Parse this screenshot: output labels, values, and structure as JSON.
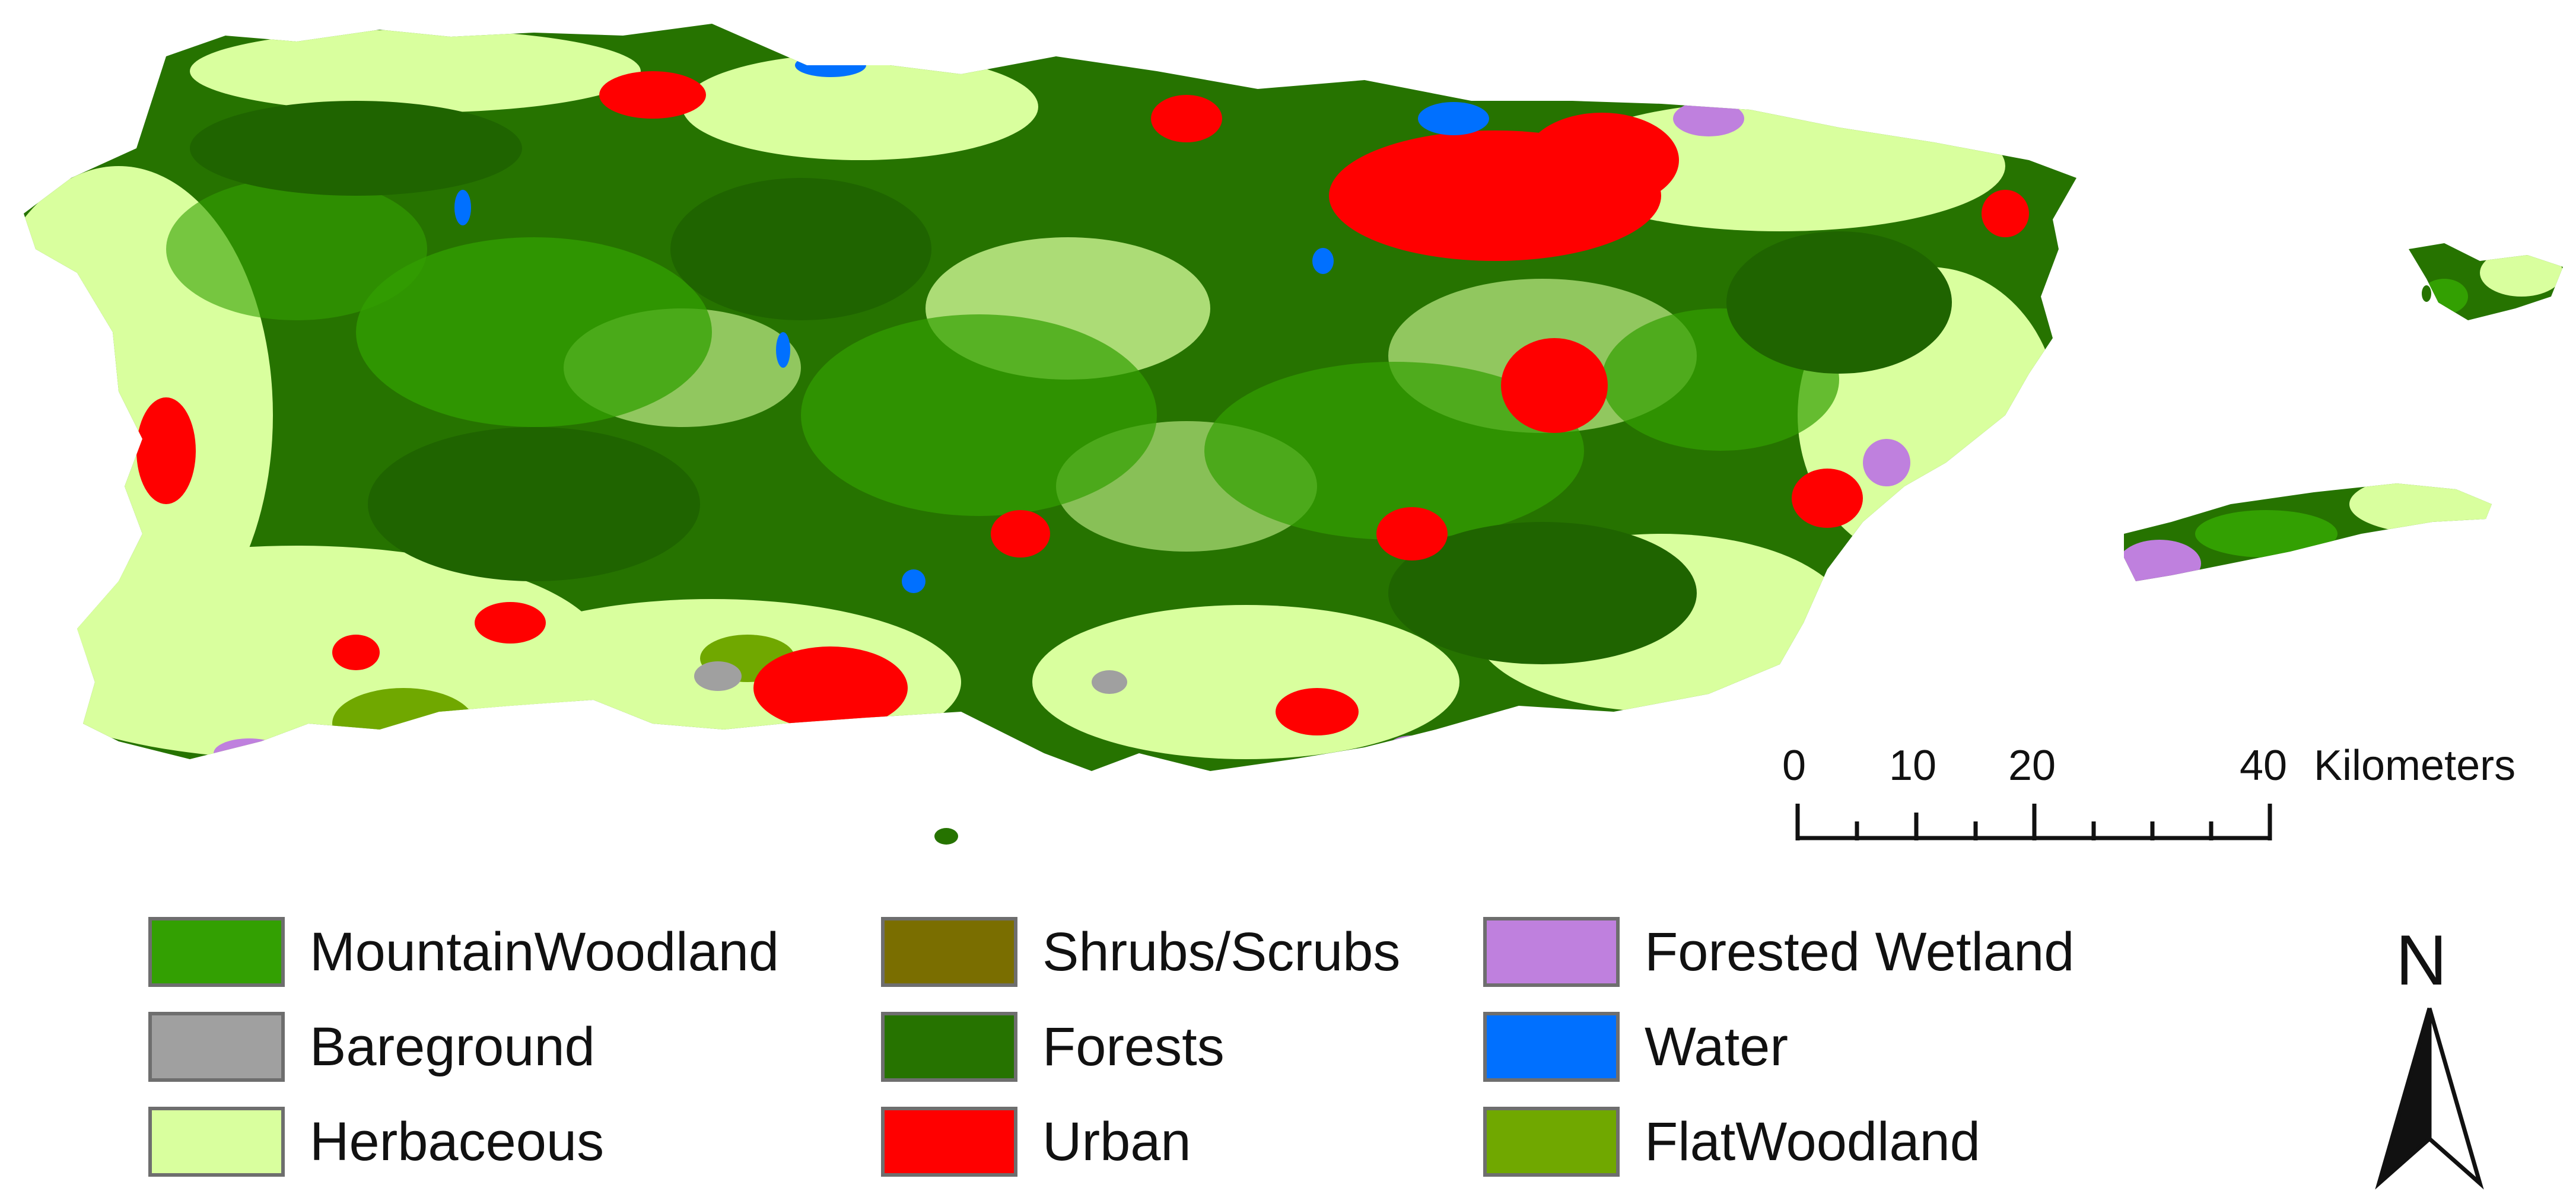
{
  "legend": {
    "items": [
      {
        "label": "MountainWoodland",
        "color": "#33a002"
      },
      {
        "label": "Bareground",
        "color": "#a0a0a0"
      },
      {
        "label": "Herbaceous",
        "color": "#d9ff9e"
      },
      {
        "label": "Shrubs/Scrubs",
        "color": "#7a6e00"
      },
      {
        "label": "Forests",
        "color": "#267300"
      },
      {
        "label": "Urban",
        "color": "#ff0000"
      },
      {
        "label": "Forested Wetland",
        "color": "#bf80de"
      },
      {
        "label": "Water",
        "color": "#0070ff"
      },
      {
        "label": "FlatWoodland",
        "color": "#70a800"
      }
    ]
  },
  "scalebar": {
    "ticks": [
      "0",
      "10",
      "20",
      "40"
    ],
    "unit": "Kilometers"
  },
  "north_arrow": {
    "label": "N",
    "icon": "north-arrow-icon"
  }
}
